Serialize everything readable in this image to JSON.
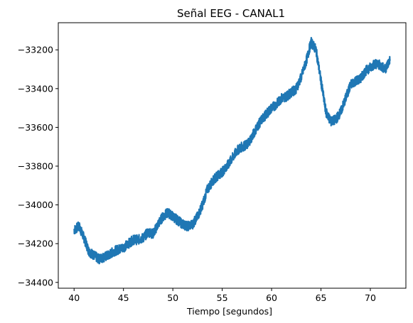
{
  "chart_data": {
    "type": "line",
    "title": "Señal EEG - CANAL1",
    "xlabel": "Tiempo [segundos]",
    "ylabel": "",
    "xlim": [
      38.4,
      73.6
    ],
    "ylim": [
      -34430,
      -33060
    ],
    "xticks": [
      40,
      45,
      50,
      55,
      60,
      65,
      70
    ],
    "yticks": [
      -34400,
      -34200,
      -34000,
      -33800,
      -33600,
      -33400,
      -33200
    ],
    "ytick_labels": [
      "−34400",
      "−34200",
      "−34000",
      "−33800",
      "−33600",
      "−33400",
      "−33200"
    ],
    "grid": false,
    "noise_band": 25,
    "series": [
      {
        "color": "#1f77b4",
        "x": [
          40.0,
          40.5,
          41.0,
          41.5,
          42.0,
          42.5,
          43.0,
          43.5,
          44.0,
          44.5,
          45.0,
          45.5,
          46.0,
          46.5,
          47.0,
          47.5,
          48.0,
          48.5,
          49.0,
          49.5,
          50.0,
          50.5,
          51.0,
          51.5,
          52.0,
          52.5,
          53.0,
          53.5,
          54.0,
          54.5,
          55.0,
          55.5,
          56.0,
          56.5,
          57.0,
          57.5,
          58.0,
          58.5,
          59.0,
          59.5,
          60.0,
          60.5,
          61.0,
          61.5,
          62.0,
          62.5,
          63.0,
          63.5,
          64.0,
          64.5,
          65.0,
          65.5,
          66.0,
          66.5,
          67.0,
          67.5,
          68.0,
          68.5,
          69.0,
          69.5,
          70.0,
          70.5,
          71.0,
          71.5,
          72.0
        ],
        "y": [
          -34130,
          -34110,
          -34170,
          -34240,
          -34260,
          -34280,
          -34270,
          -34260,
          -34240,
          -34230,
          -34220,
          -34200,
          -34180,
          -34180,
          -34170,
          -34140,
          -34150,
          -34100,
          -34060,
          -34040,
          -34060,
          -34080,
          -34100,
          -34110,
          -34100,
          -34060,
          -34000,
          -33920,
          -33880,
          -33850,
          -33830,
          -33800,
          -33760,
          -33720,
          -33700,
          -33690,
          -33650,
          -33600,
          -33560,
          -33530,
          -33500,
          -33480,
          -33450,
          -33440,
          -33420,
          -33400,
          -33340,
          -33260,
          -33160,
          -33200,
          -33360,
          -33520,
          -33570,
          -33560,
          -33520,
          -33450,
          -33380,
          -33360,
          -33350,
          -33310,
          -33290,
          -33270,
          -33280,
          -33300,
          -33250
        ]
      }
    ]
  }
}
